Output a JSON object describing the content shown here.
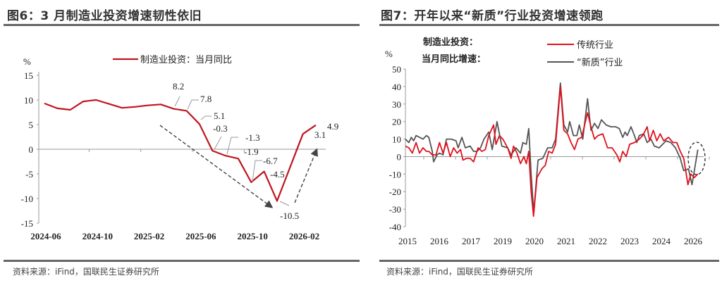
{
  "panels": {
    "left": {
      "title": "图6：3 月制造业投资增速韧性依旧",
      "source": "资料来源：iFind，国联民生证券研究所"
    },
    "right": {
      "title": "图7：开年以来“新质”行业投资增速领跑",
      "source": "资料来源：iFind，国联民生证券研究所"
    }
  },
  "colors": {
    "red": "#c0151f",
    "gray": "#555555",
    "label_red": "#d9364a",
    "rule": "#666666"
  },
  "chart_data": [
    {
      "type": "line",
      "ylabel": "%",
      "ylim": [
        -15,
        15
      ],
      "yticks": [
        15,
        10,
        5,
        0,
        -5,
        -10,
        -15
      ],
      "xtick_labels": [
        "2024-06",
        "2024-10",
        "2025-02",
        "2025-06",
        "2025-10",
        "2026-02"
      ],
      "legend": "top-center",
      "series": [
        {
          "name": "制造业投资：当月同比",
          "color": "#c0151f",
          "x": [
            "2024-06",
            "2024-07",
            "2024-08",
            "2024-09",
            "2024-10",
            "2024-11",
            "2024-12",
            "2025-01",
            "2025-02",
            "2025-03",
            "2025-04",
            "2025-05",
            "2025-06",
            "2025-07",
            "2025-08",
            "2025-09",
            "2025-10",
            "2025-11",
            "2025-12",
            "2026-01",
            "2026-02",
            "2026-03"
          ],
          "values": [
            9.3,
            8.3,
            8.0,
            9.7,
            10.0,
            9.2,
            8.4,
            8.6,
            8.9,
            9.1,
            8.2,
            7.8,
            5.1,
            -0.3,
            -1.3,
            -1.9,
            -6.7,
            -4.5,
            -10.5,
            null,
            3.1,
            4.9
          ]
        }
      ],
      "annotations": [
        {
          "month": "2025-04",
          "text": "8.2",
          "color": "black"
        },
        {
          "month": "2025-05",
          "text": "7.8",
          "color": "black"
        },
        {
          "month": "2025-06",
          "text": "5.1",
          "color": "black"
        },
        {
          "month": "2025-07",
          "text": "-0.3",
          "color": "red"
        },
        {
          "month": "2025-08",
          "text": "-1.3",
          "color": "red"
        },
        {
          "month": "2025-09",
          "text": "-1.9",
          "color": "red"
        },
        {
          "month": "2025-10",
          "text": "-6.7",
          "color": "red"
        },
        {
          "month": "2025-11",
          "text": "-4.5",
          "color": "red"
        },
        {
          "month": "2025-12",
          "text": "-10.5",
          "color": "red"
        },
        {
          "month": "2026-02",
          "text": "3.1",
          "color": "black"
        },
        {
          "month": "2026-03",
          "text": "4.9",
          "color": "black"
        }
      ],
      "trend_arrows": [
        "down 2025-03 to 2025-12",
        "up 2026-01 to 2026-03"
      ]
    },
    {
      "type": "line",
      "ylabel": "%",
      "ylim": [
        -40,
        50
      ],
      "yticks": [
        50,
        40,
        30,
        20,
        10,
        0,
        -10,
        -20,
        -30,
        -40
      ],
      "xlim": [
        2015,
        2026.2
      ],
      "xtick_labels": [
        "2015",
        "2016",
        "2017",
        "2019",
        "2020",
        "2021",
        "2022",
        "2023",
        "2024",
        "2026"
      ],
      "legend_title": [
        "制造业投资：",
        "当月同比增速："
      ],
      "legend": "top",
      "series": [
        {
          "name": "传统行业",
          "color": "#e0101c",
          "points": [
            [
              2015.0,
              6
            ],
            [
              2015.13,
              5
            ],
            [
              2015.26,
              2
            ],
            [
              2015.4,
              8
            ],
            [
              2015.53,
              2
            ],
            [
              2015.66,
              5
            ],
            [
              2015.79,
              3
            ],
            [
              2015.88,
              3
            ],
            [
              2016.01,
              1
            ],
            [
              2016.15,
              1
            ],
            [
              2016.28,
              8
            ],
            [
              2016.41,
              2
            ],
            [
              2016.54,
              8
            ],
            [
              2016.68,
              0
            ],
            [
              2016.81,
              5
            ],
            [
              2016.94,
              2
            ],
            [
              2017.07,
              4
            ],
            [
              2017.16,
              -2
            ],
            [
              2017.29,
              -1
            ],
            [
              2017.43,
              -1
            ],
            [
              2017.56,
              -3
            ],
            [
              2017.73,
              5
            ],
            [
              2017.87,
              3
            ],
            [
              2018.0,
              4
            ],
            [
              2018.13,
              12
            ],
            [
              2018.31,
              18
            ],
            [
              2018.4,
              7
            ],
            [
              2018.53,
              12
            ],
            [
              2018.66,
              10
            ],
            [
              2018.84,
              5
            ],
            [
              2018.97,
              -1
            ],
            [
              2019.06,
              6
            ],
            [
              2019.19,
              2
            ],
            [
              2019.32,
              -4
            ],
            [
              2019.45,
              0
            ],
            [
              2019.54,
              -4
            ],
            [
              2019.63,
              3
            ],
            [
              2019.72,
              -20
            ],
            [
              2019.81,
              -34
            ],
            [
              2019.94,
              -12
            ],
            [
              2020.12,
              -7
            ],
            [
              2020.25,
              -5
            ],
            [
              2020.38,
              3
            ],
            [
              2020.51,
              2
            ],
            [
              2020.64,
              7
            ],
            [
              2020.82,
              40
            ],
            [
              2020.95,
              15
            ],
            [
              2021.09,
              13
            ],
            [
              2021.22,
              8
            ],
            [
              2021.35,
              4
            ],
            [
              2021.48,
              10
            ],
            [
              2021.62,
              11
            ],
            [
              2021.84,
              25
            ],
            [
              2021.97,
              17
            ],
            [
              2022.1,
              10
            ],
            [
              2022.23,
              12
            ],
            [
              2022.41,
              13
            ],
            [
              2022.59,
              5
            ],
            [
              2022.76,
              5
            ],
            [
              2022.94,
              1
            ],
            [
              2023.05,
              -3
            ],
            [
              2023.16,
              3
            ],
            [
              2023.29,
              0
            ],
            [
              2023.42,
              7
            ],
            [
              2023.6,
              8
            ],
            [
              2023.78,
              10
            ],
            [
              2023.91,
              12
            ],
            [
              2024.08,
              17
            ],
            [
              2024.17,
              9
            ],
            [
              2024.31,
              15
            ],
            [
              2024.44,
              9
            ],
            [
              2024.57,
              13
            ],
            [
              2024.7,
              9
            ],
            [
              2024.88,
              11
            ],
            [
              2025.05,
              8
            ],
            [
              2025.19,
              8
            ],
            [
              2025.32,
              3
            ],
            [
              2025.45,
              -1
            ],
            [
              2025.61,
              -16
            ],
            [
              2025.72,
              -10
            ],
            [
              2025.85,
              -12
            ],
            [
              2025.98,
              -10
            ]
          ]
        },
        {
          "name": "“新质”行业",
          "color": "#555555",
          "points": [
            [
              2015.0,
              10
            ],
            [
              2015.13,
              8
            ],
            [
              2015.22,
              11
            ],
            [
              2015.31,
              9
            ],
            [
              2015.4,
              12
            ],
            [
              2015.53,
              11
            ],
            [
              2015.66,
              10
            ],
            [
              2015.79,
              12
            ],
            [
              2015.88,
              11
            ],
            [
              2016.01,
              3
            ],
            [
              2016.06,
              -3
            ],
            [
              2016.19,
              1
            ],
            [
              2016.28,
              2
            ],
            [
              2016.41,
              1
            ],
            [
              2016.54,
              10
            ],
            [
              2016.72,
              10
            ],
            [
              2016.9,
              9
            ],
            [
              2016.98,
              5
            ],
            [
              2017.12,
              11
            ],
            [
              2017.25,
              5
            ],
            [
              2017.43,
              6
            ],
            [
              2017.56,
              3
            ],
            [
              2017.69,
              3
            ],
            [
              2017.82,
              5
            ],
            [
              2017.95,
              10
            ],
            [
              2018.13,
              14
            ],
            [
              2018.26,
              4
            ],
            [
              2018.44,
              20
            ],
            [
              2018.62,
              6
            ],
            [
              2018.84,
              5
            ],
            [
              2018.97,
              1
            ],
            [
              2019.15,
              5
            ],
            [
              2019.32,
              2
            ],
            [
              2019.41,
              8
            ],
            [
              2019.54,
              7
            ],
            [
              2019.63,
              16
            ],
            [
              2019.72,
              -10
            ],
            [
              2019.82,
              -32
            ],
            [
              2019.98,
              -2
            ],
            [
              2020.16,
              -1
            ],
            [
              2020.34,
              5
            ],
            [
              2020.51,
              5
            ],
            [
              2020.64,
              10
            ],
            [
              2020.82,
              42
            ],
            [
              2020.95,
              18
            ],
            [
              2021.09,
              14
            ],
            [
              2021.17,
              20
            ],
            [
              2021.31,
              12
            ],
            [
              2021.44,
              12
            ],
            [
              2021.53,
              18
            ],
            [
              2021.66,
              10
            ],
            [
              2021.84,
              33
            ],
            [
              2021.97,
              15
            ],
            [
              2022.1,
              19
            ],
            [
              2022.23,
              16
            ],
            [
              2022.36,
              21
            ],
            [
              2022.54,
              18
            ],
            [
              2022.72,
              17
            ],
            [
              2022.89,
              17
            ],
            [
              2023.03,
              16
            ],
            [
              2023.16,
              11
            ],
            [
              2023.25,
              14
            ],
            [
              2023.33,
              12
            ],
            [
              2023.47,
              17
            ],
            [
              2023.6,
              12
            ],
            [
              2023.69,
              8
            ],
            [
              2023.78,
              12
            ],
            [
              2023.95,
              13
            ],
            [
              2024.08,
              8
            ],
            [
              2024.22,
              10
            ],
            [
              2024.35,
              6
            ],
            [
              2024.53,
              5
            ],
            [
              2024.66,
              7
            ],
            [
              2024.79,
              9
            ],
            [
              2024.97,
              8
            ],
            [
              2025.14,
              5
            ],
            [
              2025.32,
              -1
            ],
            [
              2025.45,
              -8
            ],
            [
              2025.63,
              -7
            ],
            [
              2025.76,
              -16
            ],
            [
              2025.85,
              -8
            ],
            [
              2025.98,
              4
            ]
          ]
        }
      ],
      "highlight": "dashed ellipse around latest values"
    }
  ]
}
